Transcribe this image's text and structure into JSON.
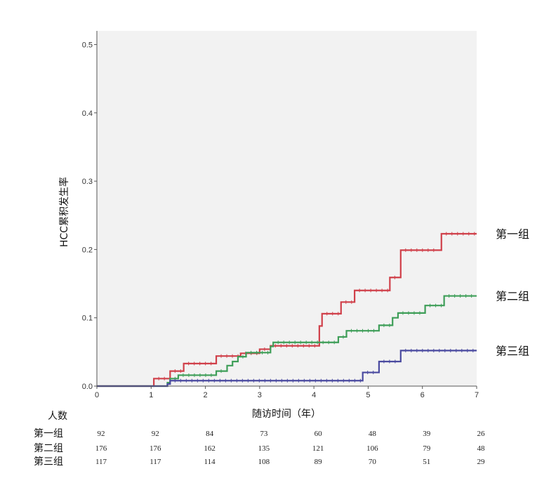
{
  "chart_data": {
    "type": "line",
    "subtype": "kaplan-meier cumulative incidence",
    "ylabel": "HCC累积发生率",
    "xlabel": "随访时间（年）",
    "xlim": [
      0,
      7
    ],
    "ylim": [
      0,
      0.52
    ],
    "x_ticks": [
      "0",
      "1",
      "2",
      "3",
      "4",
      "5",
      "6",
      "7"
    ],
    "y_ticks": [
      "0.0",
      "0.1",
      "0.2",
      "0.3",
      "0.4",
      "0.5"
    ],
    "y_tick_values": [
      0,
      0.1,
      0.2,
      0.3,
      0.4,
      0.5
    ],
    "plot_background": "#f2f2f2",
    "grid": false,
    "series": [
      {
        "name": "第一组",
        "color": "#d0404a",
        "steps": [
          [
            0,
            0
          ],
          [
            1.05,
            0.011
          ],
          [
            1.35,
            0.022
          ],
          [
            1.6,
            0.033
          ],
          [
            2.2,
            0.044
          ],
          [
            2.65,
            0.048
          ],
          [
            3.0,
            0.054
          ],
          [
            3.2,
            0.059
          ],
          [
            4.1,
            0.088
          ],
          [
            4.15,
            0.106
          ],
          [
            4.5,
            0.123
          ],
          [
            4.75,
            0.14
          ],
          [
            5.4,
            0.159
          ],
          [
            5.6,
            0.199
          ],
          [
            6.35,
            0.223
          ],
          [
            7.0,
            0.223
          ]
        ]
      },
      {
        "name": "第二组",
        "color": "#3e9e58",
        "steps": [
          [
            0,
            0
          ],
          [
            1.3,
            0.005
          ],
          [
            1.35,
            0.011
          ],
          [
            1.5,
            0.016
          ],
          [
            2.2,
            0.022
          ],
          [
            2.4,
            0.03
          ],
          [
            2.5,
            0.036
          ],
          [
            2.6,
            0.043
          ],
          [
            2.75,
            0.049
          ],
          [
            3.2,
            0.058
          ],
          [
            3.25,
            0.064
          ],
          [
            4.45,
            0.072
          ],
          [
            4.6,
            0.081
          ],
          [
            5.2,
            0.089
          ],
          [
            5.45,
            0.1
          ],
          [
            5.55,
            0.107
          ],
          [
            6.05,
            0.118
          ],
          [
            6.4,
            0.132
          ],
          [
            7.0,
            0.132
          ]
        ]
      },
      {
        "name": "第三组",
        "color": "#4a4aa0",
        "steps": [
          [
            0,
            0
          ],
          [
            1.3,
            0.003
          ],
          [
            1.35,
            0.008
          ],
          [
            4.9,
            0.02
          ],
          [
            5.2,
            0.036
          ],
          [
            5.6,
            0.052
          ],
          [
            7.0,
            0.052
          ]
        ]
      }
    ],
    "risk_table": {
      "title": "人数",
      "times": [
        0,
        1,
        2,
        3,
        4,
        5,
        6,
        7
      ],
      "rows": [
        {
          "label": "第一组",
          "values": [
            "92",
            "92",
            "84",
            "73",
            "60",
            "48",
            "39",
            "26"
          ]
        },
        {
          "label": "第二组",
          "values": [
            "176",
            "176",
            "162",
            "135",
            "121",
            "106",
            "79",
            "48"
          ]
        },
        {
          "label": "第三组",
          "values": [
            "117",
            "117",
            "114",
            "108",
            "89",
            "70",
            "51",
            "29"
          ]
        }
      ]
    }
  }
}
